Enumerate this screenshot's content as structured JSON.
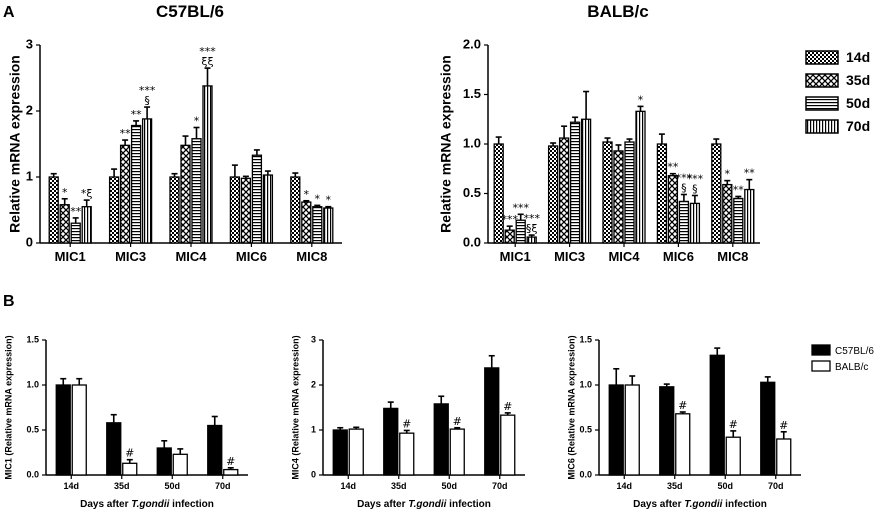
{
  "figure": {
    "panel_a_letter": "A",
    "panel_b_letter": "B",
    "legend_a": [
      "14d",
      "35d",
      "50d",
      "70d"
    ],
    "legend_b": [
      "C57BL/6",
      "BALB/c"
    ]
  },
  "chart_data": [
    {
      "id": "a1",
      "type": "bar",
      "title": "C57BL/6",
      "ylabel": "Relative mRNA expression",
      "xlabel": "",
      "ylim": [
        0,
        3
      ],
      "yticks": [
        "0",
        "1",
        "2",
        "3"
      ],
      "categories": [
        "MIC1",
        "MIC3",
        "MIC4",
        "MIC6",
        "MIC8"
      ],
      "series": [
        {
          "name": "14d",
          "values": [
            1.0,
            1.0,
            1.0,
            1.0,
            1.0
          ],
          "errors": [
            0.05,
            0.12,
            0.05,
            0.18,
            0.06
          ]
        },
        {
          "name": "35d",
          "values": [
            0.58,
            1.48,
            1.48,
            0.98,
            0.62
          ],
          "errors": [
            0.09,
            0.08,
            0.14,
            0.03,
            0.02
          ]
        },
        {
          "name": "50d",
          "values": [
            0.3,
            1.78,
            1.58,
            1.33,
            0.55
          ],
          "errors": [
            0.08,
            0.07,
            0.17,
            0.08,
            0.02
          ]
        },
        {
          "name": "70d",
          "values": [
            0.55,
            1.88,
            2.38,
            1.03,
            0.53
          ],
          "errors": [
            0.1,
            0.18,
            0.27,
            0.06,
            0.02
          ]
        }
      ],
      "annotations": [
        [
          "",
          "*",
          "**",
          "*ξ"
        ],
        [
          "",
          "**",
          "**",
          "***|§"
        ],
        [
          "",
          "",
          "*",
          "***|ξξ"
        ],
        [
          "",
          "",
          "",
          ""
        ],
        [
          "",
          "*",
          "*",
          "*"
        ]
      ]
    },
    {
      "id": "a2",
      "type": "bar",
      "title": "BALB/c",
      "ylabel": "Relative mRNA expression",
      "xlabel": "",
      "ylim": [
        0,
        2
      ],
      "yticks": [
        "0.0",
        "0.5",
        "1.0",
        "1.5",
        "2.0"
      ],
      "categories": [
        "MIC1",
        "MIC3",
        "MIC4",
        "MIC6",
        "MIC8"
      ],
      "series": [
        {
          "name": "14d",
          "values": [
            1.0,
            0.98,
            1.02,
            1.0,
            1.0
          ],
          "errors": [
            0.07,
            0.03,
            0.04,
            0.1,
            0.05
          ]
        },
        {
          "name": "35d",
          "values": [
            0.13,
            1.06,
            0.93,
            0.68,
            0.59
          ],
          "errors": [
            0.04,
            0.12,
            0.06,
            0.02,
            0.04
          ]
        },
        {
          "name": "50d",
          "values": [
            0.23,
            1.22,
            1.02,
            0.42,
            0.45
          ],
          "errors": [
            0.06,
            0.05,
            0.03,
            0.07,
            0.02
          ]
        },
        {
          "name": "70d",
          "values": [
            0.06,
            1.25,
            1.33,
            0.4,
            0.54
          ],
          "errors": [
            0.02,
            0.28,
            0.05,
            0.08,
            0.1
          ]
        }
      ],
      "annotations": [
        [
          "",
          "***",
          "***",
          "***|§ξ"
        ],
        [
          "",
          "",
          "",
          ""
        ],
        [
          "",
          "",
          "",
          "*"
        ],
        [
          "",
          "**",
          "***|§",
          "***|§"
        ],
        [
          "",
          "*",
          "**",
          "**"
        ]
      ]
    },
    {
      "id": "b1",
      "type": "bar",
      "title": "",
      "ylabel": "MIC1 (Relative mRNA expression)",
      "xlabel": "Days after T.gondii infection",
      "ylim": [
        0,
        1.5
      ],
      "yticks": [
        "0.0",
        "0.5",
        "1.0",
        "1.5"
      ],
      "categories": [
        "14d",
        "35d",
        "50d",
        "70d"
      ],
      "series": [
        {
          "name": "C57BL/6",
          "values": [
            1.0,
            0.58,
            0.3,
            0.55
          ],
          "errors": [
            0.07,
            0.09,
            0.08,
            0.1
          ]
        },
        {
          "name": "BALB/c",
          "values": [
            1.0,
            0.13,
            0.23,
            0.06
          ],
          "errors": [
            0.07,
            0.04,
            0.06,
            0.02
          ]
        }
      ],
      "annotations": [
        [
          "",
          ""
        ],
        [
          "",
          "#"
        ],
        [
          "",
          ""
        ],
        [
          "",
          "#"
        ]
      ]
    },
    {
      "id": "b2",
      "type": "bar",
      "title": "",
      "ylabel": "MIC4 (Relative mRNA expression)",
      "xlabel": "Days after T.gondii infection",
      "ylim": [
        0,
        3
      ],
      "yticks": [
        "0",
        "1",
        "2",
        "3"
      ],
      "categories": [
        "14d",
        "35d",
        "50d",
        "70d"
      ],
      "series": [
        {
          "name": "C57BL/6",
          "values": [
            1.0,
            1.48,
            1.58,
            2.38
          ],
          "errors": [
            0.05,
            0.14,
            0.17,
            0.27
          ]
        },
        {
          "name": "BALB/c",
          "values": [
            1.02,
            0.93,
            1.02,
            1.33
          ],
          "errors": [
            0.04,
            0.06,
            0.03,
            0.05
          ]
        }
      ],
      "annotations": [
        [
          "",
          ""
        ],
        [
          "",
          "#"
        ],
        [
          "",
          "#"
        ],
        [
          "",
          "#"
        ]
      ]
    },
    {
      "id": "b3",
      "type": "bar",
      "title": "",
      "ylabel": "MIC6 (Relative mRNA expression)",
      "xlabel": "Days after T.gondii infection",
      "ylim": [
        0,
        1.5
      ],
      "yticks": [
        "0.0",
        "0.5",
        "1.0",
        "1.5"
      ],
      "categories": [
        "14d",
        "35d",
        "50d",
        "70d"
      ],
      "series": [
        {
          "name": "C57BL/6",
          "values": [
            1.0,
            0.98,
            1.33,
            1.03
          ],
          "errors": [
            0.18,
            0.03,
            0.08,
            0.06
          ]
        },
        {
          "name": "BALB/c",
          "values": [
            1.0,
            0.68,
            0.42,
            0.4
          ],
          "errors": [
            0.1,
            0.02,
            0.07,
            0.08
          ]
        }
      ],
      "annotations": [
        [
          "",
          ""
        ],
        [
          "",
          "#"
        ],
        [
          "",
          "#"
        ],
        [
          "",
          "#"
        ]
      ]
    }
  ]
}
